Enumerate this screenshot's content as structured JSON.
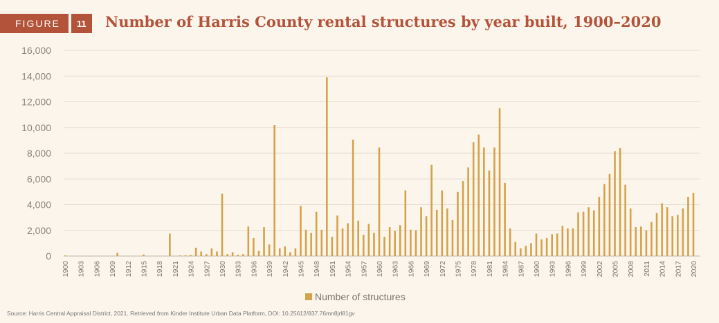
{
  "figure": {
    "label": "FIGURE",
    "number": "11"
  },
  "chart_data": {
    "type": "bar",
    "title": "Number of Harris County rental structures by year built, 1900–2020",
    "xlabel": "",
    "ylabel": "",
    "ylim": [
      0,
      16000
    ],
    "yticks": [
      0,
      2000,
      4000,
      6000,
      8000,
      10000,
      12000,
      14000,
      16000
    ],
    "ytick_labels": [
      "0",
      "2,000",
      "4,000",
      "6,000",
      "8,000",
      "10,000",
      "12,000",
      "14,000",
      "16,000"
    ],
    "x_tick_labels": [
      "1900",
      "1903",
      "1906",
      "1909",
      "1912",
      "1915",
      "1918",
      "1921",
      "1924",
      "1927",
      "1930",
      "1933",
      "1936",
      "1939",
      "1942",
      "1945",
      "1948",
      "1951",
      "1954",
      "1957",
      "1960",
      "1963",
      "1966",
      "1969",
      "1972",
      "1975",
      "1978",
      "1981",
      "1984",
      "1987",
      "1990",
      "1993",
      "1996",
      "1999",
      "2002",
      "2005",
      "2008",
      "2011",
      "2014",
      "2017",
      "2020"
    ],
    "x_start": 1900,
    "x_end": 2020,
    "legend_position": "bottom",
    "grid": true,
    "series": [
      {
        "name": "Number of structures",
        "color": "#d4a24a",
        "values": [
          50,
          0,
          0,
          0,
          0,
          0,
          0,
          0,
          0,
          0,
          250,
          0,
          0,
          0,
          0,
          120,
          0,
          0,
          0,
          0,
          1750,
          0,
          50,
          60,
          80,
          650,
          350,
          150,
          600,
          350,
          4850,
          150,
          300,
          100,
          150,
          2300,
          1400,
          400,
          2250,
          900,
          10200,
          600,
          750,
          300,
          600,
          3900,
          2050,
          1800,
          3450,
          2050,
          13900,
          1500,
          3150,
          2150,
          2550,
          9050,
          2750,
          1650,
          2500,
          1800,
          8450,
          1500,
          2250,
          1950,
          2400,
          5100,
          2050,
          2000,
          3800,
          3100,
          7100,
          3600,
          5100,
          3700,
          2800,
          5000,
          5850,
          6900,
          8850,
          9450,
          8450,
          6650,
          8450,
          11500,
          5700,
          2150,
          1100,
          600,
          800,
          1000,
          1750,
          1300,
          1400,
          1700,
          1750,
          2350,
          2150,
          2150,
          3400,
          3450,
          3800,
          3550,
          4600,
          5600,
          6400,
          8150,
          8400,
          5550,
          3700,
          2250,
          2300,
          2000,
          2650,
          3350,
          4100,
          3800,
          3100,
          3200,
          3700,
          4600,
          4900
        ]
      }
    ]
  },
  "source": "Source: Harris Central Appraisal District, 2021. Retrieved from Kinder Institute Urban Data Platform, DOI: 10.25612/837.76mn8jrl81gv"
}
